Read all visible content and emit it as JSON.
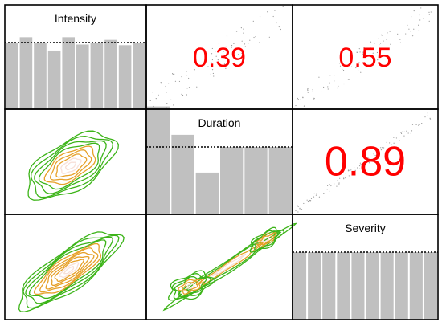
{
  "chart_data": {
    "type": "scatter-matrix",
    "variables": [
      "Intensity",
      "Duration",
      "Severity"
    ],
    "diagonal": {
      "type": "bar",
      "histograms": [
        {
          "variable": "Intensity",
          "values": [
            1.0,
            1.08,
            1.0,
            0.88,
            1.08,
            0.97,
            0.99,
            1.04,
            0.96,
            1.0
          ],
          "reference_line": 1.0
        },
        {
          "variable": "Duration",
          "values": [
            1.6,
            1.18,
            0.62,
            1.0,
            1.0,
            1.0
          ],
          "reference_line": 1.0
        },
        {
          "variable": "Severity",
          "values": [
            1.0,
            1.0,
            1.0,
            1.0,
            1.0,
            1.0,
            1.0,
            1.0,
            1.0,
            1.0
          ],
          "reference_line": 1.0
        }
      ]
    },
    "upper": {
      "correlations": [
        {
          "row": "Intensity",
          "col": "Duration",
          "value": "0.39"
        },
        {
          "row": "Intensity",
          "col": "Severity",
          "value": "0.55"
        },
        {
          "row": "Duration",
          "col": "Severity",
          "value": "0.89"
        }
      ]
    },
    "lower": {
      "type": "contour",
      "panels": [
        {
          "row": "Duration",
          "col": "Intensity"
        },
        {
          "row": "Severity",
          "col": "Intensity"
        },
        {
          "row": "Severity",
          "col": "Duration"
        }
      ]
    },
    "colors": {
      "correlation_text": "#ff0000",
      "bar_fill": "#c0c0c0",
      "reference_line": "#000000",
      "contour_outer": "#3cb418",
      "contour_mid": "#e6a028",
      "contour_inner": "#f8e0d8",
      "frame": "#000000"
    }
  }
}
